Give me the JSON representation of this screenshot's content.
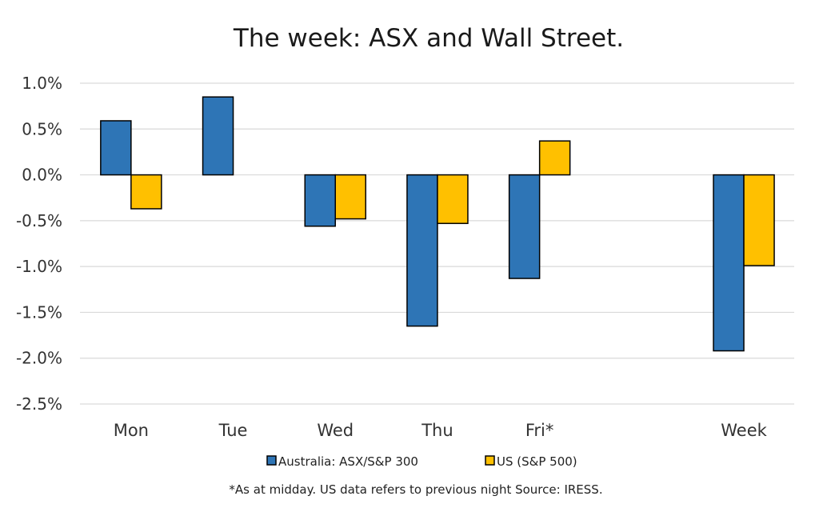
{
  "chart_data": {
    "type": "bar",
    "title": "The week:  ASX and Wall Street.",
    "categories": [
      "Mon",
      "Tue",
      "Wed",
      "Thu",
      "Fri*",
      "",
      "Week"
    ],
    "series": [
      {
        "name": "Australia: ASX/S&P 300",
        "color": "#2E75B6",
        "values": [
          0.59,
          0.85,
          -0.56,
          -1.65,
          -1.13,
          null,
          -1.92
        ]
      },
      {
        "name": "US (S&P 500)",
        "color": "#FFC000",
        "values": [
          -0.37,
          null,
          -0.48,
          -0.53,
          0.37,
          null,
          -0.99
        ]
      }
    ],
    "ylim": [
      -2.5,
      1.0
    ],
    "y_ticks": [
      "1.0%",
      "0.5%",
      "0.0%",
      "-0.5%",
      "-1.0%",
      "-1.5%",
      "-2.0%",
      "-2.5%"
    ],
    "y_tick_values": [
      1.0,
      0.5,
      0.0,
      -0.5,
      -1.0,
      -1.5,
      -2.0,
      -2.5
    ],
    "xlabel": "",
    "ylabel": "",
    "grid": true,
    "legend_position": "bottom",
    "footnote": "*As at midday. US data refers to previous night  Source:  IRESS."
  }
}
